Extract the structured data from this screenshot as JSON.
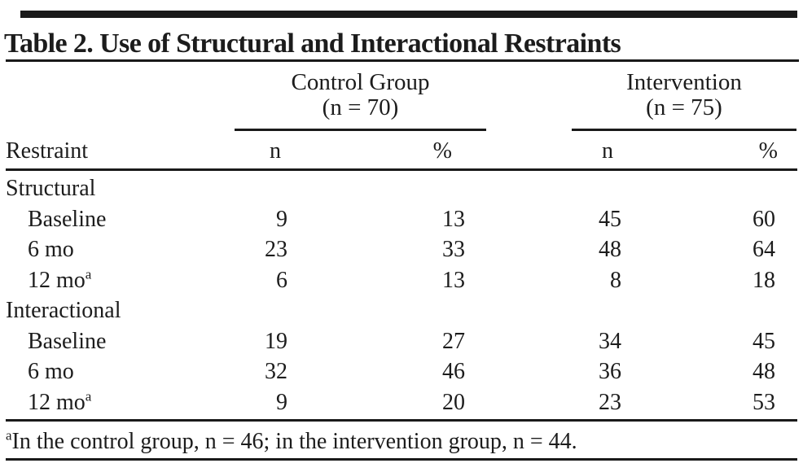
{
  "title": "Table 2. Use of Structural and Interactional Restraints",
  "column_groups": {
    "control": {
      "label": "Control Group",
      "n_line": "(n = 70)"
    },
    "intervention": {
      "label": "Intervention",
      "n_line": "(n = 75)"
    }
  },
  "columns": {
    "stub": "Restraint",
    "n": "n",
    "pct": "%"
  },
  "rows": [
    {
      "label": "Structural"
    },
    {
      "label": "Baseline",
      "values": [
        "9",
        "13",
        "45",
        "60"
      ]
    },
    {
      "label": "6 mo",
      "values": [
        "23",
        "33",
        "48",
        "64"
      ]
    },
    {
      "label": "12 mo",
      "sup": "a",
      "values": [
        "6",
        "13",
        "8",
        "18"
      ]
    },
    {
      "label": "Interactional"
    },
    {
      "label": "Baseline",
      "values": [
        "19",
        "27",
        "34",
        "45"
      ]
    },
    {
      "label": "6 mo",
      "values": [
        "32",
        "46",
        "36",
        "48"
      ]
    },
    {
      "label": "12 mo",
      "sup": "a",
      "values": [
        "9",
        "20",
        "23",
        "53"
      ]
    }
  ],
  "footnote": {
    "marker": "a",
    "text": "In the control group, n = 46; in the intervention group, n = 44."
  },
  "colors": {
    "rule": "#1a1a1a",
    "text": "#1c1c1c",
    "background": "#ffffff"
  },
  "chart_data": {
    "type": "table",
    "title": "Table 2. Use of Structural and Interactional Restraints",
    "column_groups": [
      "Control Group (n = 70)",
      "Intervention (n = 75)"
    ],
    "columns": [
      "Restraint",
      "Control n",
      "Control %",
      "Intervention n",
      "Intervention %"
    ],
    "rows": [
      [
        "Structural",
        null,
        null,
        null,
        null
      ],
      [
        "Baseline",
        9,
        13,
        45,
        60
      ],
      [
        "6 mo",
        23,
        33,
        48,
        64
      ],
      [
        "12 mo (a)",
        6,
        13,
        8,
        18
      ],
      [
        "Interactional",
        null,
        null,
        null,
        null
      ],
      [
        "Baseline",
        19,
        27,
        34,
        45
      ],
      [
        "6 mo",
        32,
        46,
        36,
        48
      ],
      [
        "12 mo (a)",
        9,
        20,
        23,
        53
      ]
    ],
    "footnote": "(a) In the control group, n = 46; in the intervention group, n = 44."
  }
}
